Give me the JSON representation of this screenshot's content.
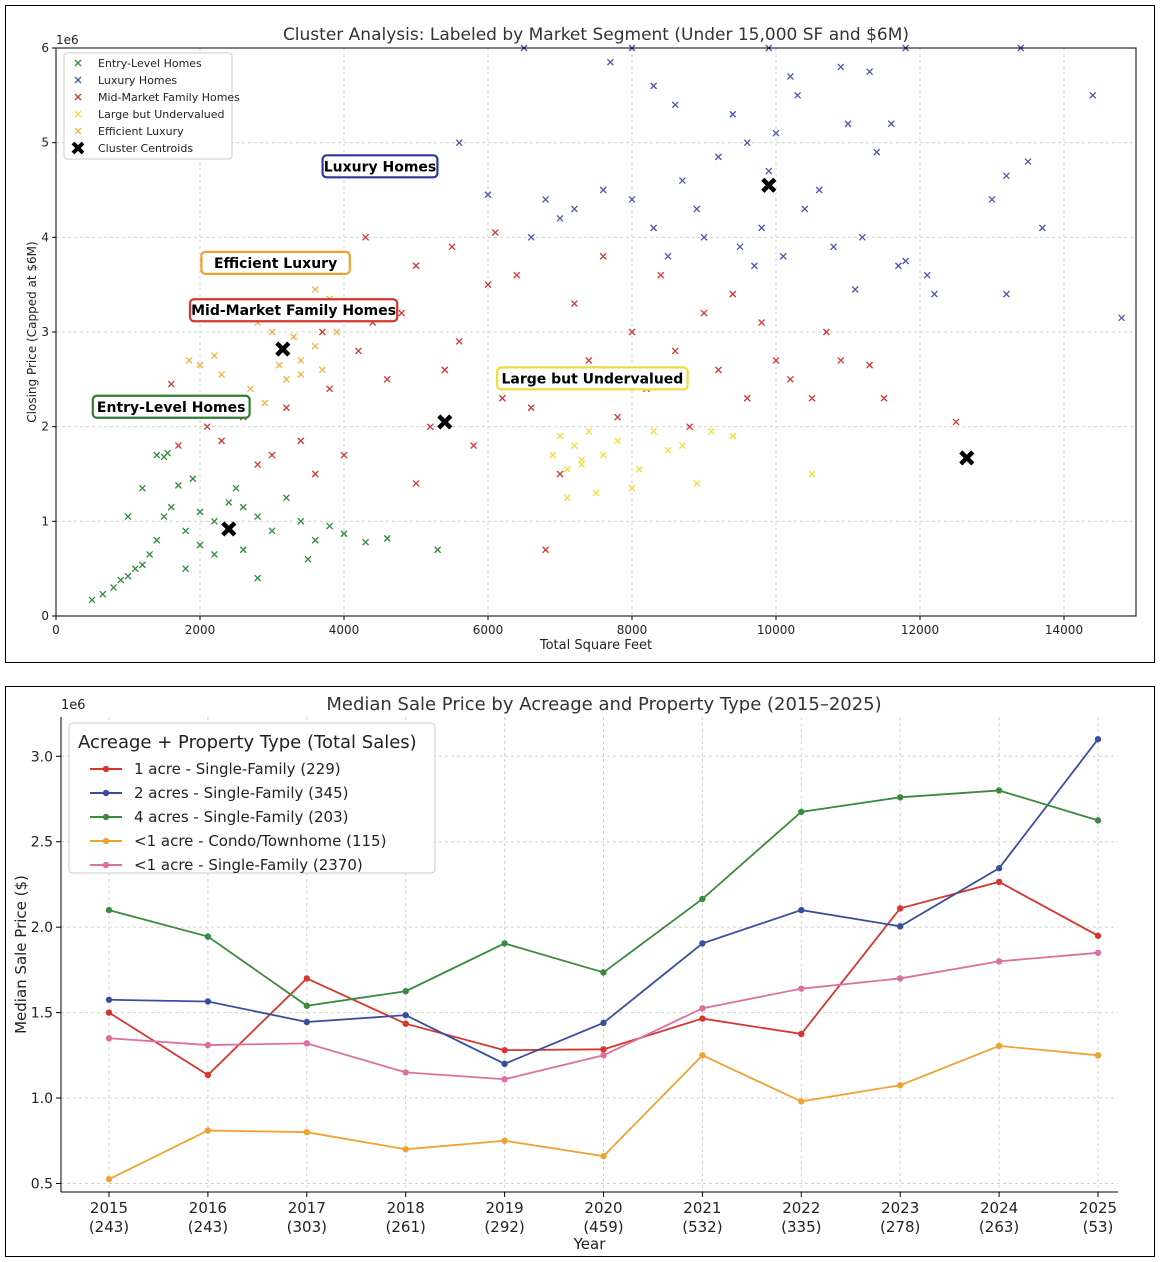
{
  "chart_data": [
    {
      "type": "scatter",
      "title": "Cluster Analysis: Labeled by Market Segment (Under 15,000 SF and $6M)",
      "xlabel": "Total Square Feet",
      "ylabel": "Closing Price (Capped at $6M)",
      "y_multiplier_label": "1e6",
      "xlim": [
        0,
        15000
      ],
      "ylim": [
        0,
        6000000
      ],
      "x_ticks": [
        0,
        2000,
        4000,
        6000,
        8000,
        10000,
        12000,
        14000
      ],
      "y_ticks": [
        0,
        1,
        2,
        3,
        4,
        5,
        6
      ],
      "grid": true,
      "legend_position": "top-left",
      "series": [
        {
          "name": "Entry-Level Homes",
          "color": "#2e8b3a",
          "marker": "x",
          "points": [
            [
              500,
              170000
            ],
            [
              650,
              230000
            ],
            [
              800,
              300000
            ],
            [
              900,
              380000
            ],
            [
              1000,
              420000
            ],
            [
              1100,
              500000
            ],
            [
              1200,
              540000
            ],
            [
              1300,
              650000
            ],
            [
              1400,
              800000
            ],
            [
              1500,
              1050000
            ],
            [
              1600,
              1150000
            ],
            [
              1700,
              1380000
            ],
            [
              1800,
              900000
            ],
            [
              2000,
              1100000
            ],
            [
              2200,
              1000000
            ],
            [
              2400,
              1200000
            ],
            [
              2600,
              1150000
            ],
            [
              2800,
              1050000
            ],
            [
              3000,
              900000
            ],
            [
              3200,
              1250000
            ],
            [
              3400,
              1000000
            ],
            [
              3600,
              800000
            ],
            [
              3800,
              950000
            ],
            [
              4000,
              870000
            ],
            [
              4300,
              780000
            ],
            [
              4600,
              820000
            ],
            [
              5300,
              700000
            ],
            [
              1400,
              1700000
            ],
            [
              1500,
              1680000
            ],
            [
              1550,
              1720000
            ],
            [
              1000,
              1050000
            ],
            [
              1200,
              1350000
            ],
            [
              2200,
              650000
            ],
            [
              2800,
              400000
            ],
            [
              1800,
              500000
            ],
            [
              2000,
              750000
            ],
            [
              2600,
              700000
            ],
            [
              3500,
              600000
            ],
            [
              1900,
              1450000
            ],
            [
              2500,
              1350000
            ]
          ]
        },
        {
          "name": "Luxury Homes",
          "color": "#4a56b0",
          "marker": "x",
          "points": [
            [
              5600,
              5000000
            ],
            [
              6000,
              4450000
            ],
            [
              6600,
              4000000
            ],
            [
              6800,
              4400000
            ],
            [
              7000,
              4200000
            ],
            [
              7200,
              4300000
            ],
            [
              7600,
              4500000
            ],
            [
              8000,
              4400000
            ],
            [
              8300,
              4100000
            ],
            [
              8500,
              3800000
            ],
            [
              8700,
              4600000
            ],
            [
              8900,
              4300000
            ],
            [
              9000,
              4000000
            ],
            [
              9200,
              4850000
            ],
            [
              9400,
              5300000
            ],
            [
              9500,
              3900000
            ],
            [
              9600,
              5000000
            ],
            [
              9700,
              3700000
            ],
            [
              9800,
              4100000
            ],
            [
              9900,
              4700000
            ],
            [
              10000,
              5100000
            ],
            [
              10100,
              3800000
            ],
            [
              10200,
              5700000
            ],
            [
              10300,
              5500000
            ],
            [
              10400,
              4300000
            ],
            [
              10600,
              4500000
            ],
            [
              10800,
              3900000
            ],
            [
              10900,
              5800000
            ],
            [
              11000,
              5200000
            ],
            [
              11100,
              3450000
            ],
            [
              11200,
              4000000
            ],
            [
              11300,
              5750000
            ],
            [
              11400,
              4900000
            ],
            [
              11600,
              5200000
            ],
            [
              11700,
              3700000
            ],
            [
              11800,
              3750000
            ],
            [
              12100,
              3600000
            ],
            [
              12200,
              3400000
            ],
            [
              13000,
              4400000
            ],
            [
              13200,
              3400000
            ],
            [
              13200,
              4650000
            ],
            [
              13400,
              6000000
            ],
            [
              13500,
              4800000
            ],
            [
              13700,
              4100000
            ],
            [
              14400,
              5500000
            ],
            [
              14800,
              3150000
            ],
            [
              6500,
              6000000
            ],
            [
              8000,
              6000000
            ],
            [
              8300,
              5600000
            ],
            [
              9900,
              6000000
            ],
            [
              11800,
              6000000
            ],
            [
              7700,
              5850000
            ],
            [
              8600,
              5400000
            ]
          ]
        },
        {
          "name": "Mid-Market Family Homes",
          "color": "#d7362e",
          "marker": "x",
          "points": [
            [
              1600,
              2450000
            ],
            [
              1700,
              1800000
            ],
            [
              2100,
              2000000
            ],
            [
              2300,
              1850000
            ],
            [
              2600,
              2100000
            ],
            [
              2800,
              1600000
            ],
            [
              3000,
              1700000
            ],
            [
              3200,
              2200000
            ],
            [
              3400,
              1850000
            ],
            [
              3600,
              1500000
            ],
            [
              3800,
              2400000
            ],
            [
              4000,
              1700000
            ],
            [
              4200,
              2800000
            ],
            [
              4300,
              4000000
            ],
            [
              4400,
              3100000
            ],
            [
              4600,
              2500000
            ],
            [
              4800,
              3200000
            ],
            [
              5000,
              1400000
            ],
            [
              5200,
              2000000
            ],
            [
              5400,
              2600000
            ],
            [
              5600,
              2900000
            ],
            [
              5800,
              1800000
            ],
            [
              6000,
              3500000
            ],
            [
              6200,
              2300000
            ],
            [
              6400,
              3600000
            ],
            [
              6600,
              2200000
            ],
            [
              6800,
              700000
            ],
            [
              7000,
              1500000
            ],
            [
              7200,
              3300000
            ],
            [
              7400,
              2700000
            ],
            [
              7600,
              3800000
            ],
            [
              7800,
              2100000
            ],
            [
              8000,
              3000000
            ],
            [
              8200,
              2400000
            ],
            [
              8400,
              3600000
            ],
            [
              8600,
              2800000
            ],
            [
              8800,
              2000000
            ],
            [
              9000,
              3200000
            ],
            [
              9200,
              2600000
            ],
            [
              9400,
              3400000
            ],
            [
              9600,
              2300000
            ],
            [
              9800,
              3100000
            ],
            [
              10000,
              2700000
            ],
            [
              10200,
              2500000
            ],
            [
              10500,
              2300000
            ],
            [
              10700,
              3000000
            ],
            [
              10900,
              2700000
            ],
            [
              11300,
              2650000
            ],
            [
              11500,
              2300000
            ],
            [
              12500,
              2050000
            ],
            [
              5000,
              3700000
            ],
            [
              6100,
              4050000
            ],
            [
              5500,
              3900000
            ],
            [
              3700,
              3000000
            ]
          ]
        },
        {
          "name": "Large but Undervalued",
          "color": "#f2dc3b",
          "marker": "x",
          "points": [
            [
              6900,
              1700000
            ],
            [
              7000,
              1900000
            ],
            [
              7100,
              1550000
            ],
            [
              7200,
              1800000
            ],
            [
              7300,
              1650000
            ],
            [
              7400,
              1950000
            ],
            [
              7600,
              1700000
            ],
            [
              7800,
              1850000
            ],
            [
              8000,
              1350000
            ],
            [
              8100,
              1550000
            ],
            [
              8300,
              1950000
            ],
            [
              8500,
              1750000
            ],
            [
              8700,
              1800000
            ],
            [
              8900,
              1400000
            ],
            [
              9100,
              1950000
            ],
            [
              9400,
              1900000
            ],
            [
              10500,
              1500000
            ],
            [
              7100,
              1250000
            ],
            [
              7500,
              1300000
            ],
            [
              7300,
              1600000
            ]
          ]
        },
        {
          "name": "Efficient Luxury",
          "color": "#f5b041",
          "marker": "x",
          "points": [
            [
              1850,
              2700000
            ],
            [
              2000,
              2650000
            ],
            [
              2200,
              2750000
            ],
            [
              2300,
              2550000
            ],
            [
              2500,
              2200000
            ],
            [
              2700,
              2400000
            ],
            [
              2800,
              3100000
            ],
            [
              3000,
              3000000
            ],
            [
              3200,
              2500000
            ],
            [
              3300,
              2950000
            ],
            [
              3400,
              2700000
            ],
            [
              3500,
              3300000
            ],
            [
              3600,
              3450000
            ],
            [
              3700,
              2600000
            ],
            [
              3800,
              3350000
            ],
            [
              3900,
              3000000
            ],
            [
              3400,
              2550000
            ],
            [
              3100,
              2650000
            ],
            [
              3600,
              2850000
            ],
            [
              2900,
              2250000
            ]
          ]
        },
        {
          "name": "Cluster Centroids",
          "color": "#000000",
          "marker": "X",
          "points": [
            [
              2400,
              920000
            ],
            [
              3150,
              2820000
            ],
            [
              5400,
              2050000
            ],
            [
              9900,
              4550000
            ],
            [
              12650,
              1670000
            ]
          ]
        }
      ],
      "annotations": [
        {
          "text": "Luxury Homes",
          "x": 4500,
          "y": 4750000,
          "border": "#2b3a9a"
        },
        {
          "text": "Efficient Luxury",
          "x": 3050,
          "y": 3730000,
          "border": "#f0a030"
        },
        {
          "text": "Mid-Market Family Homes",
          "x": 3300,
          "y": 3230000,
          "border": "#d7362e"
        },
        {
          "text": "Large but Undervalued",
          "x": 7450,
          "y": 2510000,
          "border": "#f2dc3b"
        },
        {
          "text": "Entry-Level Homes",
          "x": 1600,
          "y": 2210000,
          "border": "#2e7d32"
        }
      ]
    },
    {
      "type": "line",
      "title": "Median Sale Price by Acreage and Property Type (2015–2025)",
      "xlabel": "Year",
      "ylabel": "Median Sale Price ($)",
      "y_multiplier_label": "1e6",
      "categories": [
        "2015",
        "2016",
        "2017",
        "2018",
        "2019",
        "2020",
        "2021",
        "2022",
        "2023",
        "2024",
        "2025"
      ],
      "category_counts": [
        "(243)",
        "(243)",
        "(303)",
        "(261)",
        "(292)",
        "(459)",
        "(532)",
        "(335)",
        "(278)",
        "(263)",
        "(53)"
      ],
      "ylim": [
        450000,
        3230000
      ],
      "y_ticks": [
        "0.5",
        "1.0",
        "1.5",
        "2.0",
        "2.5",
        "3.0"
      ],
      "grid": true,
      "legend_title": "Acreage + Property Type (Total Sales)",
      "legend_position": "top-left",
      "series": [
        {
          "name": "1 acre - Single-Family (229)",
          "color": "#d7362e",
          "values": [
            1500000,
            1135000,
            1700000,
            1435000,
            1280000,
            1285000,
            1465000,
            1375000,
            2110000,
            2265000,
            1950000
          ]
        },
        {
          "name": "2 acres - Single-Family (345)",
          "color": "#3a4ea0",
          "values": [
            1575000,
            1565000,
            1445000,
            1485000,
            1200000,
            1440000,
            1905000,
            2100000,
            2005000,
            2345000,
            3100000
          ]
        },
        {
          "name": "4 acres - Single-Family (203)",
          "color": "#3a8a3f",
          "values": [
            2100000,
            1945000,
            1540000,
            1625000,
            1905000,
            1735000,
            2165000,
            2675000,
            2760000,
            2800000,
            2625000
          ]
        },
        {
          "name": "<1 acre - Condo/Townhome (115)",
          "color": "#f2a233",
          "values": [
            525000,
            810000,
            800000,
            700000,
            750000,
            660000,
            1250000,
            980000,
            1075000,
            1305000,
            1250000
          ]
        },
        {
          "name": "<1 acre - Single-Family (2370)",
          "color": "#de6fa1",
          "values": [
            1350000,
            1310000,
            1320000,
            1150000,
            1110000,
            1250000,
            1525000,
            1640000,
            1700000,
            1800000,
            1850000
          ]
        }
      ]
    }
  ]
}
